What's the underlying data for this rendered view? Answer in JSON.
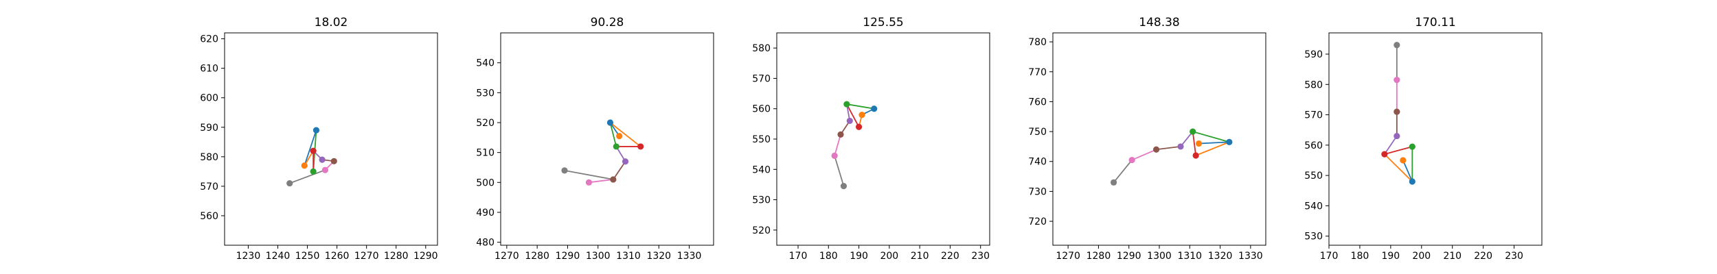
{
  "chart_data": [
    {
      "type": "line",
      "title": "18.02",
      "xlabel": "",
      "ylabel": "",
      "xlim": [
        1222,
        1294
      ],
      "ylim": [
        550,
        622
      ],
      "xticks": [
        1230,
        1240,
        1250,
        1260,
        1270,
        1280,
        1290
      ],
      "yticks": [
        560,
        570,
        580,
        590,
        600,
        610,
        620
      ],
      "grid": false,
      "points": [
        {
          "color": "#1f77b4",
          "x": 1253,
          "y": 589
        },
        {
          "color": "#ff7f0e",
          "x": 1249,
          "y": 577
        },
        {
          "color": "#2ca02c",
          "x": 1252,
          "y": 575
        },
        {
          "color": "#d62728",
          "x": 1252,
          "y": 582
        },
        {
          "color": "#9467bd",
          "x": 1255,
          "y": 579
        },
        {
          "color": "#8c564b",
          "x": 1259,
          "y": 578.5
        },
        {
          "color": "#e377c2",
          "x": 1256,
          "y": 575.5
        },
        {
          "color": "#7f7f7f",
          "x": 1244,
          "y": 571
        }
      ],
      "edges": [
        {
          "from": 0,
          "to": 1,
          "color": "#1f77b4"
        },
        {
          "from": 1,
          "to": 3,
          "color": "#ff7f0e"
        },
        {
          "from": 0,
          "to": 2,
          "color": "#2ca02c"
        },
        {
          "from": 2,
          "to": 3,
          "color": "#d62728"
        },
        {
          "from": 3,
          "to": 4,
          "color": "#9467bd"
        },
        {
          "from": 4,
          "to": 5,
          "color": "#8c564b"
        },
        {
          "from": 5,
          "to": 6,
          "color": "#e377c2"
        },
        {
          "from": 6,
          "to": 7,
          "color": "#7f7f7f"
        }
      ]
    },
    {
      "type": "line",
      "title": "90.28",
      "xlabel": "",
      "ylabel": "",
      "xlim": [
        1268,
        1338
      ],
      "ylim": [
        479,
        550
      ],
      "xticks": [
        1270,
        1280,
        1290,
        1300,
        1310,
        1320,
        1330
      ],
      "yticks": [
        480,
        490,
        500,
        510,
        520,
        530,
        540
      ],
      "grid": false,
      "points": [
        {
          "color": "#1f77b4",
          "x": 1304,
          "y": 520
        },
        {
          "color": "#ff7f0e",
          "x": 1307,
          "y": 515.5
        },
        {
          "color": "#2ca02c",
          "x": 1306,
          "y": 512
        },
        {
          "color": "#d62728",
          "x": 1314,
          "y": 512
        },
        {
          "color": "#9467bd",
          "x": 1309,
          "y": 507
        },
        {
          "color": "#8c564b",
          "x": 1305,
          "y": 501
        },
        {
          "color": "#e377c2",
          "x": 1297,
          "y": 500
        },
        {
          "color": "#7f7f7f",
          "x": 1289,
          "y": 504
        }
      ],
      "edges": [
        {
          "from": 0,
          "to": 1,
          "color": "#1f77b4"
        },
        {
          "from": 0,
          "to": 3,
          "color": "#ff7f0e"
        },
        {
          "from": 0,
          "to": 2,
          "color": "#2ca02c"
        },
        {
          "from": 2,
          "to": 3,
          "color": "#d62728"
        },
        {
          "from": 2,
          "to": 4,
          "color": "#9467bd"
        },
        {
          "from": 4,
          "to": 5,
          "color": "#8c564b"
        },
        {
          "from": 5,
          "to": 6,
          "color": "#e377c2"
        },
        {
          "from": 5,
          "to": 7,
          "color": "#7f7f7f"
        }
      ]
    },
    {
      "type": "line",
      "title": "125.55",
      "xlabel": "",
      "ylabel": "",
      "xlim": [
        163,
        233
      ],
      "ylim": [
        515,
        585
      ],
      "xticks": [
        170,
        180,
        190,
        200,
        210,
        220,
        230
      ],
      "yticks": [
        520,
        530,
        540,
        550,
        560,
        570,
        580
      ],
      "grid": false,
      "points": [
        {
          "color": "#1f77b4",
          "x": 195,
          "y": 560
        },
        {
          "color": "#ff7f0e",
          "x": 191,
          "y": 558
        },
        {
          "color": "#2ca02c",
          "x": 186,
          "y": 561.5
        },
        {
          "color": "#d62728",
          "x": 190,
          "y": 554
        },
        {
          "color": "#9467bd",
          "x": 187,
          "y": 556
        },
        {
          "color": "#8c564b",
          "x": 184,
          "y": 551.5
        },
        {
          "color": "#e377c2",
          "x": 182,
          "y": 544.5
        },
        {
          "color": "#7f7f7f",
          "x": 185,
          "y": 534.5
        }
      ],
      "edges": [
        {
          "from": 0,
          "to": 1,
          "color": "#1f77b4"
        },
        {
          "from": 1,
          "to": 3,
          "color": "#ff7f0e"
        },
        {
          "from": 0,
          "to": 2,
          "color": "#2ca02c"
        },
        {
          "from": 2,
          "to": 3,
          "color": "#d62728"
        },
        {
          "from": 2,
          "to": 4,
          "color": "#9467bd"
        },
        {
          "from": 4,
          "to": 5,
          "color": "#8c564b"
        },
        {
          "from": 5,
          "to": 6,
          "color": "#e377c2"
        },
        {
          "from": 6,
          "to": 7,
          "color": "#7f7f7f"
        }
      ]
    },
    {
      "type": "line",
      "title": "148.38",
      "xlabel": "",
      "ylabel": "",
      "xlim": [
        1265,
        1335
      ],
      "ylim": [
        712,
        783
      ],
      "xticks": [
        1270,
        1280,
        1290,
        1300,
        1310,
        1320,
        1330
      ],
      "yticks": [
        720,
        730,
        740,
        750,
        760,
        770,
        780
      ],
      "grid": false,
      "points": [
        {
          "color": "#1f77b4",
          "x": 1323,
          "y": 746.5
        },
        {
          "color": "#ff7f0e",
          "x": 1313,
          "y": 746
        },
        {
          "color": "#2ca02c",
          "x": 1311,
          "y": 750
        },
        {
          "color": "#d62728",
          "x": 1312,
          "y": 742
        },
        {
          "color": "#9467bd",
          "x": 1307,
          "y": 745
        },
        {
          "color": "#8c564b",
          "x": 1299,
          "y": 744
        },
        {
          "color": "#e377c2",
          "x": 1291,
          "y": 740.5
        },
        {
          "color": "#7f7f7f",
          "x": 1285,
          "y": 733
        }
      ],
      "edges": [
        {
          "from": 0,
          "to": 1,
          "color": "#1f77b4"
        },
        {
          "from": 0,
          "to": 3,
          "color": "#ff7f0e"
        },
        {
          "from": 0,
          "to": 2,
          "color": "#2ca02c"
        },
        {
          "from": 2,
          "to": 3,
          "color": "#d62728"
        },
        {
          "from": 2,
          "to": 4,
          "color": "#9467bd"
        },
        {
          "from": 4,
          "to": 5,
          "color": "#8c564b"
        },
        {
          "from": 5,
          "to": 6,
          "color": "#e377c2"
        },
        {
          "from": 6,
          "to": 7,
          "color": "#7f7f7f"
        }
      ]
    },
    {
      "type": "line",
      "title": "170.11",
      "xlabel": "",
      "ylabel": "",
      "xlim": [
        170,
        239
      ],
      "ylim": [
        527,
        597
      ],
      "xticks": [
        170,
        180,
        190,
        200,
        210,
        220,
        230
      ],
      "yticks": [
        530,
        540,
        550,
        560,
        570,
        580,
        590
      ],
      "grid": false,
      "points": [
        {
          "color": "#1f77b4",
          "x": 197,
          "y": 548
        },
        {
          "color": "#ff7f0e",
          "x": 194,
          "y": 555
        },
        {
          "color": "#2ca02c",
          "x": 197,
          "y": 559.5
        },
        {
          "color": "#d62728",
          "x": 188,
          "y": 557
        },
        {
          "color": "#9467bd",
          "x": 192,
          "y": 563
        },
        {
          "color": "#8c564b",
          "x": 192,
          "y": 571
        },
        {
          "color": "#e377c2",
          "x": 192,
          "y": 581.5
        },
        {
          "color": "#7f7f7f",
          "x": 192,
          "y": 593
        }
      ],
      "edges": [
        {
          "from": 0,
          "to": 1,
          "color": "#1f77b4"
        },
        {
          "from": 0,
          "to": 3,
          "color": "#ff7f0e"
        },
        {
          "from": 0,
          "to": 2,
          "color": "#2ca02c"
        },
        {
          "from": 2,
          "to": 3,
          "color": "#d62728"
        },
        {
          "from": 3,
          "to": 4,
          "color": "#9467bd"
        },
        {
          "from": 4,
          "to": 5,
          "color": "#8c564b"
        },
        {
          "from": 5,
          "to": 6,
          "color": "#e377c2"
        },
        {
          "from": 6,
          "to": 7,
          "color": "#7f7f7f"
        }
      ]
    }
  ]
}
